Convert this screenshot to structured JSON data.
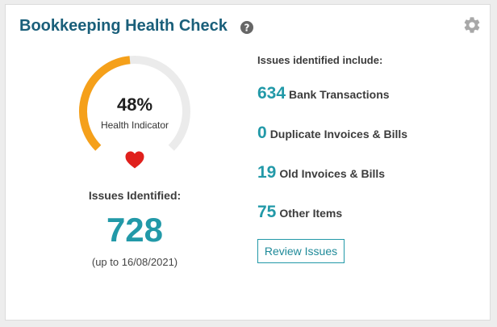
{
  "widget": {
    "title": "Bookkeeping Health Check",
    "help_icon": "question-circle-icon",
    "settings_icon": "gear-icon"
  },
  "gauge": {
    "percent_label": "48%",
    "percent_value": 48,
    "label": "Health Indicator",
    "fill_color": "#f5a01a",
    "track_color": "#ebebeb",
    "heart_icon": "heart-icon",
    "heart_color": "#e0201c"
  },
  "summary": {
    "heading": "Issues Identified:",
    "total": "728",
    "as_of": "(up to 16/08/2021)"
  },
  "issues": {
    "heading": "Issues identified include:",
    "items": [
      {
        "count": "634",
        "label": "Bank Transactions"
      },
      {
        "count": "0",
        "label": "Duplicate Invoices & Bills"
      },
      {
        "count": "19",
        "label": "Old Invoices & Bills"
      },
      {
        "count": "75",
        "label": "Other Items"
      }
    ],
    "review_button_label": "Review Issues"
  },
  "colors": {
    "title": "#1a5f7a",
    "accent": "#2299a8"
  }
}
